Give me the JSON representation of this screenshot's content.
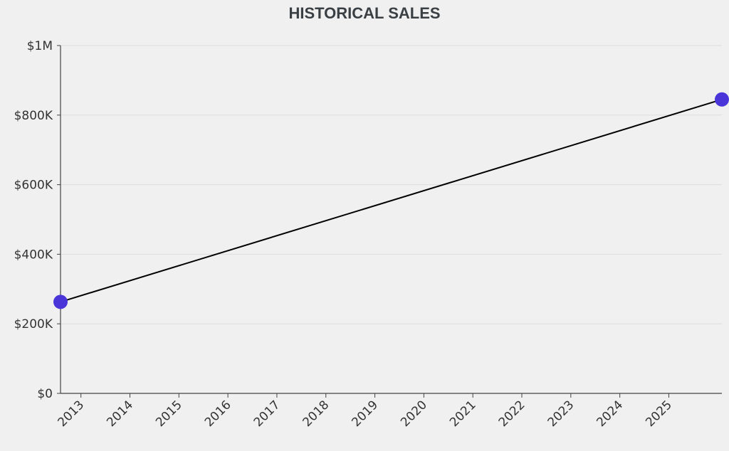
{
  "chart_data": {
    "type": "line",
    "title": "HISTORICAL SALES",
    "xlabel": "",
    "ylabel": "",
    "x_ticks": [
      "2013",
      "2014",
      "2015",
      "2016",
      "2017",
      "2018",
      "2019",
      "2020",
      "2021",
      "2022",
      "2023",
      "2024",
      "2025"
    ],
    "y_ticks": [
      {
        "value": 0,
        "label": "$0"
      },
      {
        "value": 200000,
        "label": "$200K"
      },
      {
        "value": 400000,
        "label": "$400K"
      },
      {
        "value": 600000,
        "label": "$600K"
      },
      {
        "value": 800000,
        "label": "$800K"
      },
      {
        "value": 1000000,
        "label": "$1M"
      }
    ],
    "xlim": [
      "2012-08",
      "2026-02"
    ],
    "ylim": [
      0,
      1000000
    ],
    "grid": true,
    "series": [
      {
        "points": [
          {
            "x": "2012-08",
            "y": 263000
          },
          {
            "x": "2026-02",
            "y": 845000
          }
        ],
        "line_color": "#000000",
        "marker_color": "#4a35d9"
      }
    ]
  }
}
